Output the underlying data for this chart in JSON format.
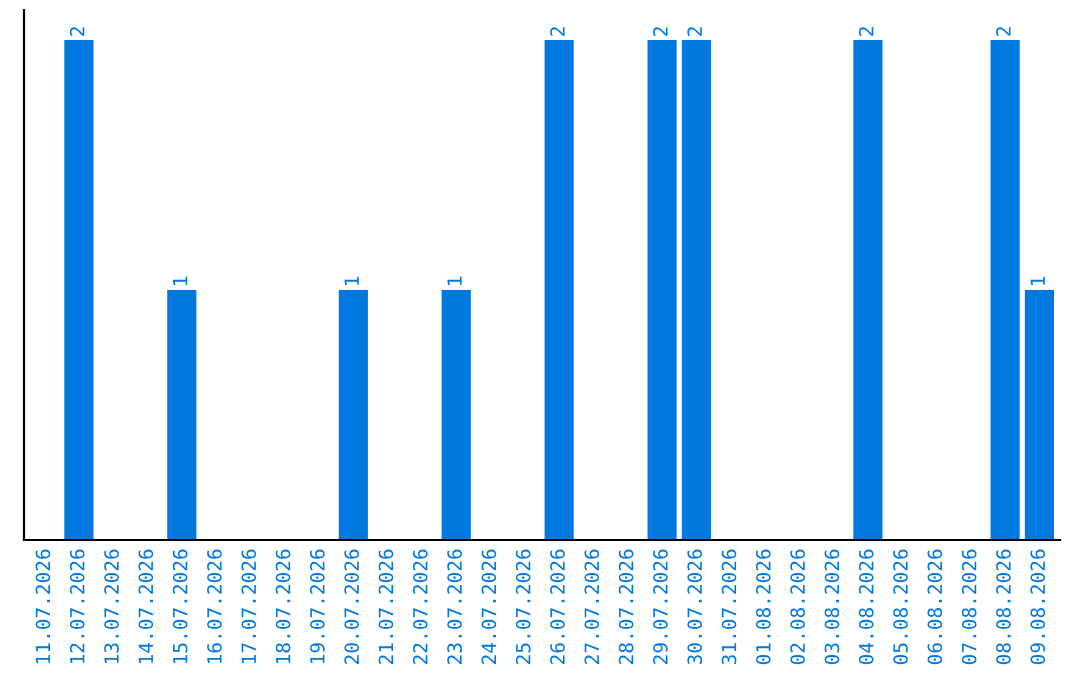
{
  "chart_data": {
    "type": "bar",
    "categories": [
      "11.07.2026",
      "12.07.2026",
      "13.07.2026",
      "14.07.2026",
      "15.07.2026",
      "16.07.2026",
      "17.07.2026",
      "18.07.2026",
      "19.07.2026",
      "20.07.2026",
      "21.07.2026",
      "22.07.2026",
      "23.07.2026",
      "24.07.2026",
      "25.07.2026",
      "26.07.2026",
      "27.07.2026",
      "28.07.2026",
      "29.07.2026",
      "30.07.2026",
      "31.07.2026",
      "01.08.2026",
      "02.08.2026",
      "03.08.2026",
      "04.08.2026",
      "05.08.2026",
      "06.08.2026",
      "07.08.2026",
      "08.08.2026",
      "09.08.2026"
    ],
    "values": [
      0,
      2,
      0,
      0,
      1,
      0,
      0,
      0,
      0,
      1,
      0,
      0,
      1,
      0,
      0,
      2,
      0,
      0,
      2,
      2,
      0,
      0,
      0,
      0,
      2,
      0,
      0,
      0,
      2,
      1
    ],
    "value_labels": [
      null,
      "2",
      null,
      null,
      "1",
      null,
      null,
      null,
      null,
      "1",
      null,
      null,
      "1",
      null,
      null,
      "2",
      null,
      null,
      "2",
      "2",
      null,
      null,
      null,
      null,
      "2",
      null,
      null,
      null,
      "2",
      "1"
    ],
    "color": "#0078e0",
    "tick_labels": "x",
    "grid": false,
    "legend": false
  }
}
